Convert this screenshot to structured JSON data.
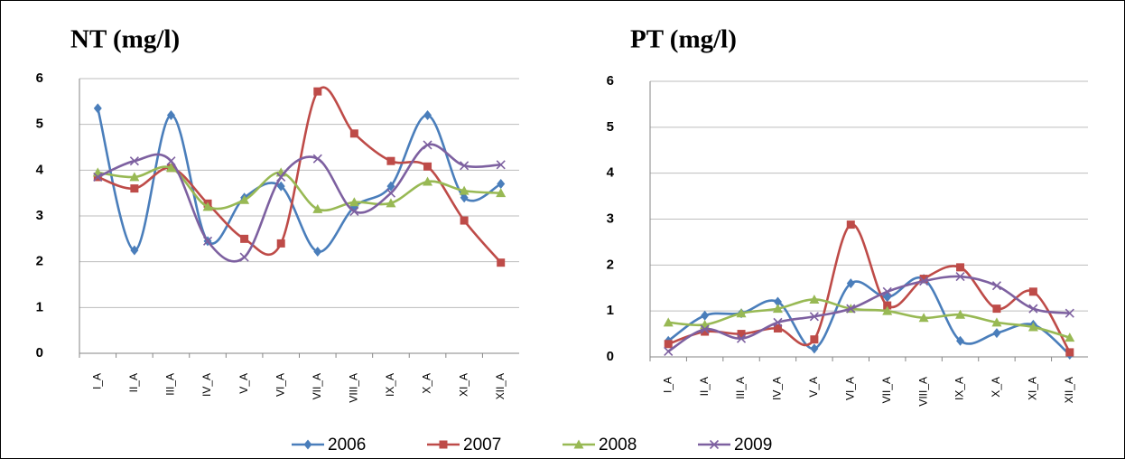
{
  "chart_data": [
    {
      "type": "line",
      "title": "NT (mg/l)",
      "categories": [
        "I_A",
        "II_A",
        "III_A",
        "IV_A",
        "V_A",
        "VI_A",
        "VII_A",
        "VIII_A",
        "IX_A",
        "X_A",
        "XI_A",
        "XII_A"
      ],
      "ylim": [
        0,
        6
      ],
      "yticks": [
        0,
        1,
        2,
        3,
        4,
        5,
        6
      ],
      "grid": true,
      "series": [
        {
          "name": "2006",
          "color": "#4a7ebb",
          "marker": "diamond",
          "values": [
            5.35,
            2.25,
            5.2,
            2.45,
            3.4,
            3.65,
            2.22,
            3.2,
            3.65,
            5.2,
            3.4,
            3.7
          ]
        },
        {
          "name": "2007",
          "color": "#be4b48",
          "marker": "square",
          "values": [
            3.85,
            3.6,
            4.05,
            3.27,
            2.5,
            2.4,
            5.72,
            4.8,
            4.2,
            4.08,
            2.9,
            1.98
          ]
        },
        {
          "name": "2008",
          "color": "#98b954",
          "marker": "triangle",
          "values": [
            3.95,
            3.85,
            4.05,
            3.2,
            3.35,
            3.95,
            3.15,
            3.3,
            3.28,
            3.75,
            3.55,
            3.5
          ]
        },
        {
          "name": "2009",
          "color": "#7d60a0",
          "marker": "x",
          "values": [
            3.85,
            4.2,
            4.2,
            2.45,
            2.1,
            3.85,
            4.25,
            3.1,
            3.5,
            4.55,
            4.1,
            4.12
          ]
        }
      ]
    },
    {
      "type": "line",
      "title": "PT (mg/l)",
      "categories": [
        "I_A",
        "II_A",
        "III_A",
        "IV_A",
        "V_A",
        "VI_A",
        "VII_A",
        "VIII_A",
        "IX_A",
        "X_A",
        "XI_A",
        "XII_A"
      ],
      "ylim": [
        0,
        6
      ],
      "yticks": [
        0,
        1,
        2,
        3,
        4,
        5,
        6
      ],
      "grid": true,
      "series": [
        {
          "name": "2006",
          "color": "#4a7ebb",
          "marker": "diamond",
          "values": [
            0.35,
            0.9,
            0.95,
            1.2,
            0.18,
            1.6,
            1.3,
            1.7,
            0.35,
            0.52,
            0.7,
            0.05
          ]
        },
        {
          "name": "2007",
          "color": "#be4b48",
          "marker": "square",
          "values": [
            0.28,
            0.55,
            0.5,
            0.62,
            0.38,
            2.88,
            1.12,
            1.7,
            1.95,
            1.05,
            1.42,
            0.1
          ]
        },
        {
          "name": "2008",
          "color": "#98b954",
          "marker": "triangle",
          "values": [
            0.75,
            0.7,
            0.95,
            1.05,
            1.25,
            1.05,
            1.0,
            0.85,
            0.92,
            0.75,
            0.65,
            0.42
          ]
        },
        {
          "name": "2009",
          "color": "#7d60a0",
          "marker": "x",
          "values": [
            0.12,
            0.6,
            0.4,
            0.75,
            0.88,
            1.05,
            1.42,
            1.65,
            1.75,
            1.55,
            1.05,
            0.95
          ]
        }
      ]
    }
  ]
}
